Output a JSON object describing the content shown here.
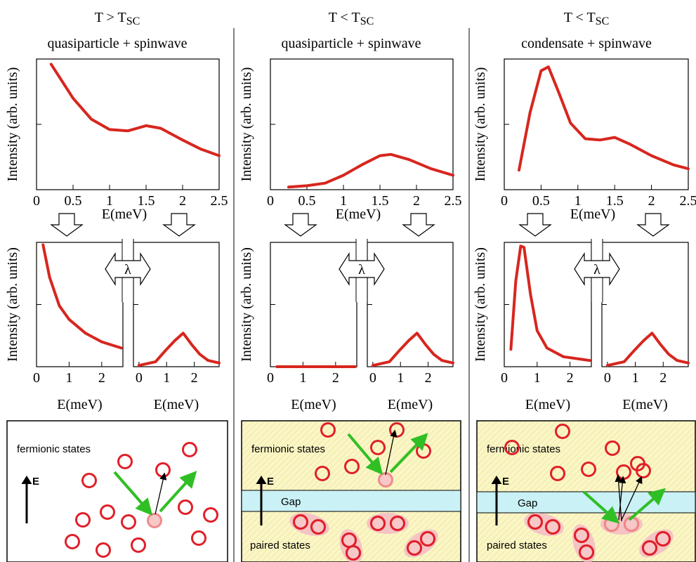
{
  "columns": [
    {
      "condition": "T > T",
      "condition_sub": "SC",
      "label": "quasiparticle + spinwave",
      "coupling": "λ"
    },
    {
      "condition": "T < T",
      "condition_sub": "SC",
      "label": "quasiparticle + spinwave",
      "coupling": "λ"
    },
    {
      "condition": "T < T",
      "condition_sub": "SC",
      "label": "condensate + spinwave",
      "coupling": "λ"
    }
  ],
  "chart_data": [
    {
      "type": "line",
      "color": "#d7261e",
      "xlabel": "E(meV)",
      "ylabel": "Intensity (arb. units)",
      "xlim": [
        0,
        2.5
      ],
      "xticks": [
        0,
        0.5,
        1,
        1.5,
        2,
        2.5
      ],
      "ylim": [
        0,
        1
      ],
      "x": [
        0.2,
        0.5,
        0.75,
        1.0,
        1.25,
        1.5,
        1.7,
        2.0,
        2.25,
        2.5
      ],
      "values": [
        0.96,
        0.7,
        0.54,
        0.46,
        0.45,
        0.49,
        0.47,
        0.38,
        0.31,
        0.26
      ]
    },
    {
      "type": "line",
      "color": "#d7261e",
      "xlabel": "E(meV)",
      "ylabel": "Intensity (arb. units)",
      "xlim": [
        0,
        2.5
      ],
      "xticks": [
        0,
        0.5,
        1,
        1.5,
        2,
        2.5
      ],
      "ylim": [
        0,
        1
      ],
      "x": [
        0.25,
        0.5,
        0.75,
        1.0,
        1.25,
        1.5,
        1.65,
        1.9,
        2.2,
        2.5
      ],
      "values": [
        0.02,
        0.03,
        0.05,
        0.11,
        0.19,
        0.26,
        0.27,
        0.23,
        0.16,
        0.11
      ]
    },
    {
      "type": "line",
      "color": "#d7261e",
      "xlabel": "E(meV)",
      "ylabel": "Intensity (arb. units)",
      "xlim": [
        0,
        2.5
      ],
      "xticks": [
        0,
        0.5,
        1,
        1.5,
        2,
        2.5
      ],
      "ylim": [
        0,
        1
      ],
      "x": [
        0.2,
        0.35,
        0.5,
        0.6,
        0.75,
        0.9,
        1.1,
        1.3,
        1.5,
        1.7,
        2.0,
        2.3,
        2.5
      ],
      "values": [
        0.15,
        0.59,
        0.91,
        0.94,
        0.73,
        0.51,
        0.39,
        0.38,
        0.4,
        0.35,
        0.26,
        0.19,
        0.16
      ]
    },
    {
      "type": "line",
      "color": "#d7261e",
      "xlabel": "E(meV)",
      "ylabel": "Intensity (arb. units)",
      "xlim": [
        0,
        2.65
      ],
      "xticks": [
        0,
        1,
        2
      ],
      "ylim": [
        0,
        1
      ],
      "x": [
        0.2,
        0.4,
        0.7,
        1.0,
        1.5,
        2.0,
        2.6
      ],
      "values": [
        0.98,
        0.72,
        0.49,
        0.38,
        0.27,
        0.2,
        0.15
      ]
    },
    {
      "type": "line",
      "color": "#d7261e",
      "xlabel": "E(meV)",
      "xlim": [
        -0.2,
        2.9
      ],
      "xticks": [
        0,
        1,
        2
      ],
      "ylim": [
        0,
        1
      ],
      "x": [
        0.0,
        0.6,
        1.0,
        1.3,
        1.6,
        1.9,
        2.2,
        2.5,
        2.9
      ],
      "values": [
        0.01,
        0.04,
        0.14,
        0.21,
        0.27,
        0.18,
        0.1,
        0.05,
        0.03
      ]
    },
    {
      "type": "line",
      "color": "#d7261e",
      "xlabel": "E(meV)",
      "ylabel": "Intensity (arb. units)",
      "xlim": [
        0,
        2.65
      ],
      "xticks": [
        0,
        1,
        2
      ],
      "ylim": [
        0,
        1
      ],
      "x": [
        0.2,
        1.0,
        2.0,
        2.6
      ],
      "values": [
        0.0,
        0.0,
        0.0,
        0.0
      ]
    },
    {
      "type": "line",
      "color": "#d7261e",
      "xlabel": "E(meV)",
      "xlim": [
        -0.2,
        2.9
      ],
      "xticks": [
        0,
        1,
        2
      ],
      "ylim": [
        0,
        1
      ],
      "x": [
        0.0,
        0.6,
        1.0,
        1.3,
        1.6,
        1.9,
        2.2,
        2.5,
        2.9
      ],
      "values": [
        0.01,
        0.04,
        0.14,
        0.21,
        0.27,
        0.18,
        0.1,
        0.05,
        0.03
      ]
    },
    {
      "type": "line",
      "color": "#d7261e",
      "xlabel": "E(meV)",
      "ylabel": "Intensity (arb. units)",
      "xlim": [
        0,
        2.65
      ],
      "xticks": [
        0,
        1,
        2
      ],
      "ylim": [
        0,
        1
      ],
      "x": [
        0.2,
        0.35,
        0.5,
        0.6,
        0.8,
        1.0,
        1.3,
        1.8,
        2.6
      ],
      "values": [
        0.14,
        0.69,
        0.97,
        0.96,
        0.58,
        0.29,
        0.15,
        0.08,
        0.05
      ]
    },
    {
      "type": "line",
      "color": "#d7261e",
      "xlabel": "E(meV)",
      "xlim": [
        -0.2,
        2.9
      ],
      "xticks": [
        0,
        1,
        2
      ],
      "ylim": [
        0,
        1
      ],
      "x": [
        0.0,
        0.6,
        1.0,
        1.3,
        1.6,
        1.9,
        2.2,
        2.5,
        2.9
      ],
      "values": [
        0.01,
        0.04,
        0.14,
        0.21,
        0.27,
        0.18,
        0.1,
        0.05,
        0.03
      ]
    }
  ],
  "diagrams": [
    {
      "fermionic": "fermionic states",
      "energy": "E"
    },
    {
      "fermionic": "fermionic states",
      "energy": "E",
      "gap": "Gap",
      "paired": "paired states"
    },
    {
      "fermionic": "fermionic states",
      "energy": "E",
      "gap": "Gap",
      "paired": "paired states"
    }
  ]
}
